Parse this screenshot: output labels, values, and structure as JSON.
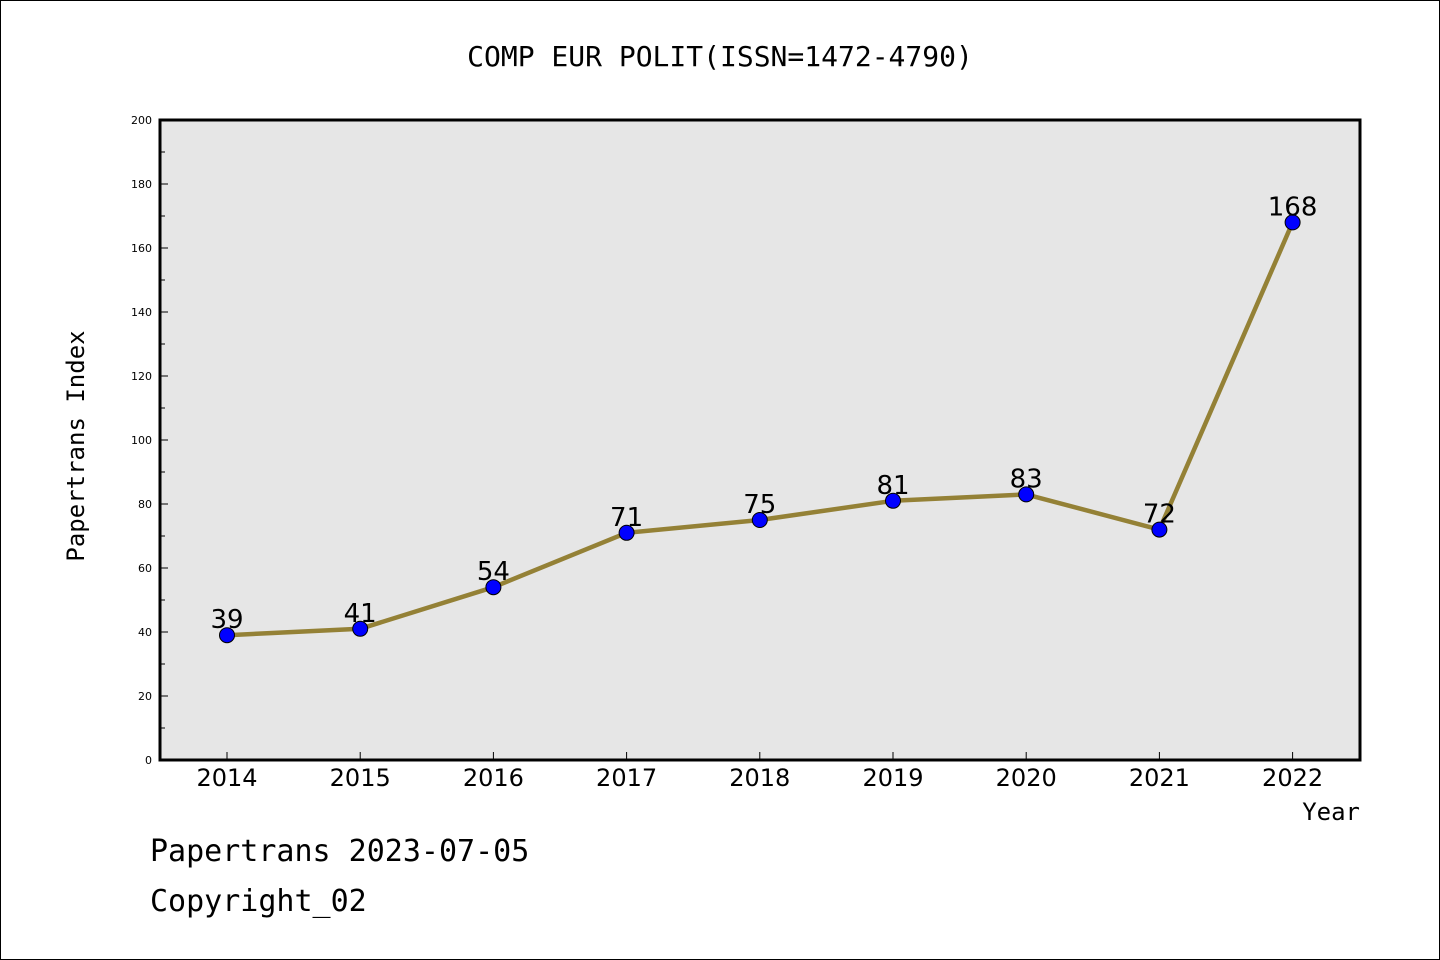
{
  "footer": {
    "line1": "Papertrans 2023-07-05",
    "line2": "Copyright_02"
  },
  "chart_data": {
    "type": "line",
    "title": "COMP EUR POLIT(ISSN=1472-4790)",
    "xlabel": "Year",
    "ylabel": "Papertrans Index",
    "categories": [
      "2014",
      "2015",
      "2016",
      "2017",
      "2018",
      "2019",
      "2020",
      "2021",
      "2022"
    ],
    "series": [
      {
        "values": [
          39,
          41,
          54,
          71,
          75,
          81,
          83,
          72,
          168
        ]
      }
    ],
    "data_labels": [
      "39",
      "41",
      "54",
      "71",
      "75",
      "81",
      "83",
      "72",
      "168"
    ],
    "ylim": [
      0,
      200
    ],
    "yticks": [
      0,
      20,
      40,
      60,
      80,
      100,
      120,
      140,
      160,
      180,
      200
    ],
    "grid": false,
    "line_color": "#948136",
    "marker_color": "#0000ff",
    "plot_background": "#e6e6e6"
  }
}
